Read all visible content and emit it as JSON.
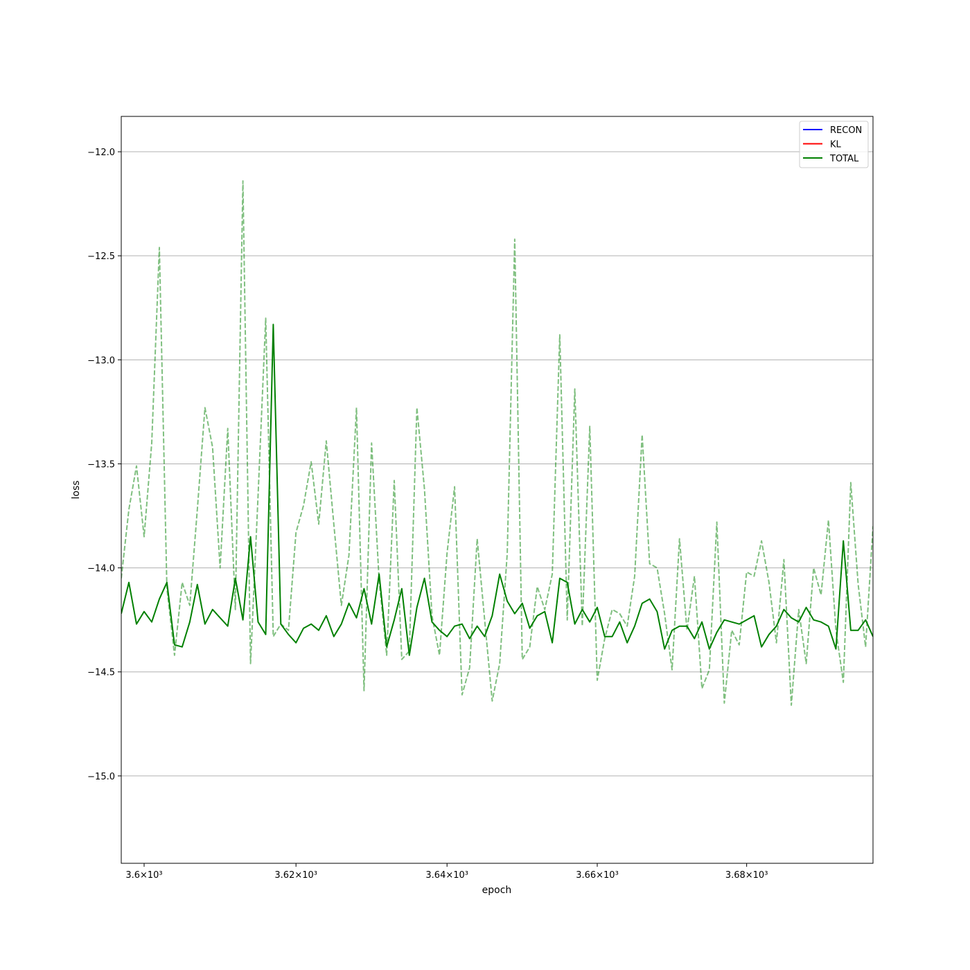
{
  "chart_data": {
    "type": "line",
    "title": "",
    "xlabel": "epoch",
    "ylabel": "loss",
    "xscale": "log",
    "xlim": [
      3597,
      3697
    ],
    "ylim": [
      -15.42,
      -11.83
    ],
    "x_ticks": [
      {
        "value": 3600,
        "label": "3.6×10³"
      },
      {
        "value": 3620,
        "label": "3.62×10³"
      },
      {
        "value": 3640,
        "label": "3.64×10³"
      },
      {
        "value": 3660,
        "label": "3.66×10³"
      },
      {
        "value": 3680,
        "label": "3.68×10³"
      }
    ],
    "y_ticks": [
      {
        "value": -12.0,
        "label": "−12.0"
      },
      {
        "value": -12.5,
        "label": "−12.5"
      },
      {
        "value": -13.0,
        "label": "−13.0"
      },
      {
        "value": -13.5,
        "label": "−13.5"
      },
      {
        "value": -14.0,
        "label": "−14.0"
      },
      {
        "value": -14.5,
        "label": "−14.5"
      },
      {
        "value": -15.0,
        "label": "−15.0"
      }
    ],
    "grid": "y-major",
    "legend_position": "top-right",
    "legend": [
      {
        "label": "RECON",
        "color": "#0000ff"
      },
      {
        "label": "KL",
        "color": "#ff0000"
      },
      {
        "label": "TOTAL",
        "color": "#008000"
      }
    ],
    "x_start": 3597,
    "x_step": 1,
    "series": [
      {
        "name": "TOTAL",
        "color": "#008000",
        "style": "solid",
        "values": [
          -14.22,
          -14.07,
          -14.27,
          -14.21,
          -14.26,
          -14.15,
          -14.07,
          -14.37,
          -14.38,
          -14.26,
          -14.08,
          -14.27,
          -14.2,
          -14.24,
          -14.28,
          -14.05,
          -14.25,
          -13.85,
          -14.26,
          -14.32,
          -12.83,
          -14.27,
          -14.32,
          -14.36,
          -14.29,
          -14.27,
          -14.3,
          -14.23,
          -14.33,
          -14.27,
          -14.17,
          -14.24,
          -14.1,
          -14.27,
          -14.03,
          -14.38,
          -14.25,
          -14.1,
          -14.42,
          -14.19,
          -14.05,
          -14.26,
          -14.3,
          -14.33,
          -14.28,
          -14.27,
          -14.34,
          -14.28,
          -14.33,
          -14.23,
          -14.03,
          -14.16,
          -14.22,
          -14.17,
          -14.29,
          -14.23,
          -14.21,
          -14.36,
          -14.05,
          -14.07,
          -14.27,
          -14.2,
          -14.26,
          -14.19,
          -14.33,
          -14.33,
          -14.26,
          -14.36,
          -14.28,
          -14.17,
          -14.15,
          -14.21,
          -14.39,
          -14.3,
          -14.28,
          -14.28,
          -14.34,
          -14.26,
          -14.39,
          -14.31,
          -14.25,
          -14.26,
          -14.27,
          -14.25,
          -14.23,
          -14.38,
          -14.32,
          -14.28,
          -14.2,
          -14.24,
          -14.26,
          -14.19,
          -14.25,
          -14.26,
          -14.28,
          -14.39,
          -13.87,
          -14.3,
          -14.3,
          -14.25,
          -14.33
        ]
      },
      {
        "name": "",
        "color": "#008000",
        "style": "dashed",
        "opacity": 0.5,
        "values": [
          -14.05,
          -13.72,
          -13.51,
          -13.85,
          -13.4,
          -12.46,
          -14.1,
          -14.42,
          -14.07,
          -14.18,
          -13.72,
          -13.23,
          -13.42,
          -14.0,
          -13.33,
          -14.2,
          -12.14,
          -14.46,
          -13.65,
          -12.8,
          -14.33,
          -14.27,
          -14.3,
          -13.83,
          -13.7,
          -13.49,
          -13.79,
          -13.39,
          -13.79,
          -14.18,
          -13.94,
          -13.23,
          -14.59,
          -13.4,
          -14.06,
          -14.42,
          -13.58,
          -14.44,
          -14.4,
          -13.23,
          -13.62,
          -14.23,
          -14.42,
          -13.93,
          -13.61,
          -14.61,
          -14.48,
          -13.86,
          -14.25,
          -14.64,
          -14.46,
          -13.93,
          -12.42,
          -14.44,
          -14.38,
          -14.09,
          -14.2,
          -14.03,
          -12.88,
          -14.25,
          -13.14,
          -14.28,
          -13.32,
          -14.54,
          -14.34,
          -14.2,
          -14.22,
          -14.28,
          -14.04,
          -13.36,
          -13.98,
          -14.0,
          -14.22,
          -14.49,
          -13.86,
          -14.3,
          -14.04,
          -14.58,
          -14.49,
          -13.78,
          -14.65,
          -14.3,
          -14.37,
          -14.02,
          -14.04,
          -13.87,
          -14.07,
          -14.36,
          -13.96,
          -14.66,
          -14.2,
          -14.46,
          -14.0,
          -14.13,
          -13.77,
          -14.3,
          -14.55,
          -13.59,
          -14.08,
          -14.38,
          -13.8
        ]
      }
    ]
  }
}
